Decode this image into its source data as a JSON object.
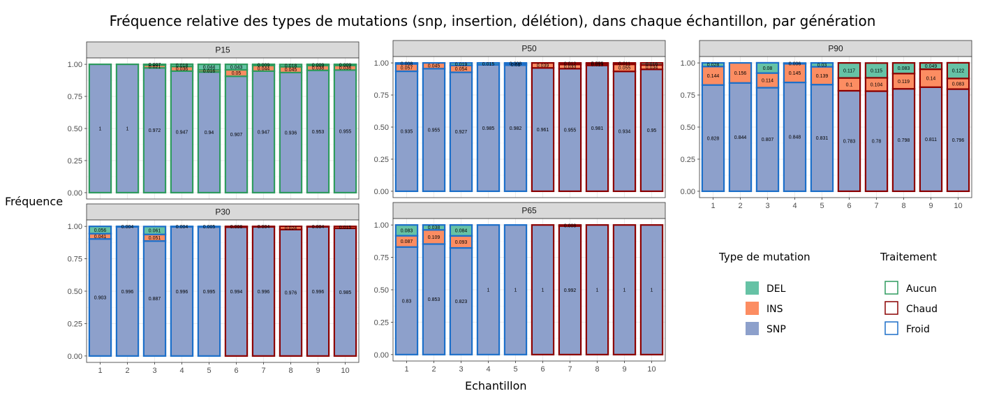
{
  "title": "Fréquence relative des types de mutations (snp, insertion, délétion), dans chaque échantillon, par génération",
  "xlabel": "Echantillon",
  "ylabel": "Fréquence",
  "chart_data": {
    "type": "bar",
    "stacked": true,
    "categories": [
      "1",
      "2",
      "3",
      "4",
      "5",
      "6",
      "7",
      "8",
      "9",
      "10"
    ],
    "y_ticks": [
      "0.00",
      "0.25",
      "0.50",
      "0.75",
      "1.00"
    ],
    "ylim": [
      0,
      1
    ],
    "grid": true,
    "stack_order": [
      "SNP",
      "INS",
      "DEL"
    ],
    "fill_colors": {
      "DEL": "#66c2a5",
      "INS": "#fc8d62",
      "SNP": "#8da0cb"
    },
    "outline_colors": {
      "Aucun": "#2e9b5e",
      "Chaud": "#8b0000",
      "Froid": "#1c6fc9"
    },
    "legend_placement": "bottom-right",
    "panels": [
      {
        "name": "P15",
        "treatment": [
          "Aucun",
          "Aucun",
          "Aucun",
          "Aucun",
          "Aucun",
          "Aucun",
          "Aucun",
          "Aucun",
          "Aucun",
          "Aucun"
        ],
        "SNP": [
          1,
          1,
          0.972,
          0.947,
          0.94,
          0.907,
          0.947,
          0.936,
          0.953,
          0.955
        ],
        "INS": [
          0,
          0,
          0.021,
          0.036,
          0.016,
          0.05,
          0.044,
          0.045,
          0.038,
          0.036
        ],
        "DEL": [
          0,
          0,
          0.007,
          0.018,
          0.044,
          0.043,
          0.009,
          0.018,
          0.009,
          0.009
        ],
        "labels": {
          "SNP": [
            "1",
            "1",
            "0.972",
            "0.947",
            "0.94",
            "0.907",
            "0.947",
            "0.936",
            "0.953",
            "0.955"
          ],
          "INS": [
            "",
            "",
            "0.021",
            "0.036",
            "0.016",
            "0.05",
            "0.044",
            "0.045",
            "0.038",
            "0.036"
          ],
          "DEL": [
            "",
            "",
            "0.007",
            "0.018",
            "0.044",
            "0.043",
            "0.009",
            "0.018",
            "0.009",
            "0.009"
          ]
        }
      },
      {
        "name": "P30",
        "treatment": [
          "Froid",
          "Froid",
          "Froid",
          "Froid",
          "Froid",
          "Chaud",
          "Chaud",
          "Chaud",
          "Chaud",
          "Chaud"
        ],
        "SNP": [
          0.903,
          0.996,
          0.887,
          0.996,
          0.995,
          0.994,
          0.996,
          0.976,
          0.996,
          0.985
        ],
        "INS": [
          0.041,
          0,
          0.051,
          0,
          0,
          0,
          0,
          0.024,
          0,
          0.015
        ],
        "DEL": [
          0.056,
          0.004,
          0.061,
          0.004,
          0.005,
          0.006,
          0.004,
          0,
          0.004,
          0
        ],
        "labels": {
          "SNP": [
            "0.903",
            "0.996",
            "0.887",
            "0.996",
            "0.995",
            "0.994",
            "0.996",
            "0.976",
            "0.996",
            "0.985"
          ],
          "INS": [
            "0.041",
            "",
            "0.051",
            "",
            "",
            "",
            "",
            "0.024",
            "",
            "0.015"
          ],
          "DEL": [
            "0.056",
            "0.004",
            "0.061",
            "0.004",
            "0.005",
            "0.006",
            "0.004",
            "",
            "0.004",
            ""
          ]
        }
      },
      {
        "name": "P50",
        "treatment": [
          "Froid",
          "Froid",
          "Froid",
          "Froid",
          "Froid",
          "Chaud",
          "Chaud",
          "Chaud",
          "Chaud",
          "Chaud"
        ],
        "SNP": [
          0.935,
          0.955,
          0.927,
          0.985,
          0.982,
          0.961,
          0.955,
          0.981,
          0.934,
          0.95
        ],
        "INS": [
          0.057,
          0.045,
          0.054,
          0,
          0.01,
          0.039,
          0.033,
          0.013,
          0.055,
          0.034
        ],
        "DEL": [
          0.008,
          0,
          0.019,
          0.015,
          0.008,
          0,
          0.012,
          0.006,
          0.011,
          0.016
        ],
        "labels": {
          "SNP": [
            "0.935",
            "0.955",
            "0.927",
            "0.985",
            "0.982",
            "0.961",
            "0.955",
            "0.981",
            "0.934",
            "0.95"
          ],
          "INS": [
            "0.057",
            "0.045",
            "0.054",
            "",
            "0.01",
            "0.039",
            "0.033",
            "0.013",
            "0.055",
            "0.034"
          ],
          "DEL": [
            "0.008",
            "",
            "0.019",
            "0.015",
            "0.008",
            "",
            "0.012",
            "0.006",
            "0.011",
            "0.016"
          ]
        }
      },
      {
        "name": "P65",
        "treatment": [
          "Froid",
          "Froid",
          "Froid",
          "Froid",
          "Froid",
          "Chaud",
          "Chaud",
          "Chaud",
          "Chaud",
          "Chaud"
        ],
        "SNP": [
          0.83,
          0.853,
          0.823,
          1,
          1,
          1,
          0.992,
          1,
          1,
          1
        ],
        "INS": [
          0.087,
          0.109,
          0.093,
          0,
          0,
          0,
          0,
          0,
          0,
          0
        ],
        "DEL": [
          0.083,
          0.038,
          0.084,
          0,
          0,
          0,
          0.008,
          0,
          0,
          0
        ],
        "labels": {
          "SNP": [
            "0.83",
            "0.853",
            "0.823",
            "1",
            "1",
            "1",
            "0.992",
            "1",
            "1",
            "1"
          ],
          "INS": [
            "0.087",
            "0.109",
            "0.093",
            "",
            "",
            "",
            "",
            "",
            "",
            ""
          ],
          "DEL": [
            "0.083",
            "0.038",
            "0.084",
            "",
            "",
            "",
            "0.008",
            "",
            "",
            ""
          ]
        }
      },
      {
        "name": "P90",
        "treatment": [
          "Froid",
          "Froid",
          "Froid",
          "Froid",
          "Froid",
          "Chaud",
          "Chaud",
          "Chaud",
          "Chaud",
          "Chaud"
        ],
        "SNP": [
          0.828,
          0.844,
          0.807,
          0.848,
          0.831,
          0.783,
          0.78,
          0.798,
          0.811,
          0.796
        ],
        "INS": [
          0.144,
          0.156,
          0.114,
          0.145,
          0.139,
          0.1,
          0.104,
          0.119,
          0.14,
          0.083
        ],
        "DEL": [
          0.028,
          0,
          0.08,
          0.006,
          0.03,
          0.117,
          0.115,
          0.083,
          0.049,
          0.122
        ],
        "labels": {
          "SNP": [
            "0.828",
            "0.844",
            "0.807",
            "0.848",
            "0.831",
            "0.783",
            "0.78",
            "0.798",
            "0.811",
            "0.796"
          ],
          "INS": [
            "0.144",
            "0.156",
            "0.114",
            "0.145",
            "0.139",
            "0.1",
            "0.104",
            "0.119",
            "0.14",
            "0.083"
          ],
          "DEL": [
            "0.028",
            "",
            "0.08",
            "0.006",
            "0.03",
            "0.117",
            "0.115",
            "0.083",
            "0.049",
            "0.122"
          ]
        }
      }
    ]
  },
  "legend": {
    "type_title": "Type de mutation",
    "type_items": [
      "DEL",
      "INS",
      "SNP"
    ],
    "treatment_title": "Traitement",
    "treatment_items": [
      "Aucun",
      "Chaud",
      "Froid"
    ]
  }
}
